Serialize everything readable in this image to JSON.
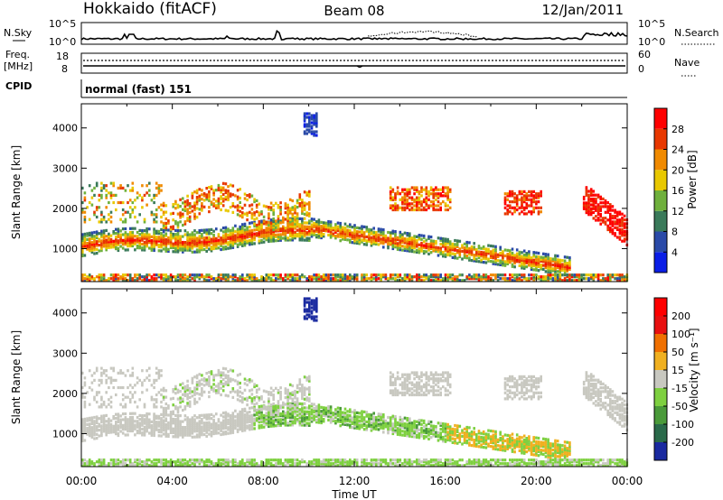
{
  "header": {
    "station": "Hokkaido (fitACF)",
    "beam": "Beam 08",
    "date": "12/Jan/2011"
  },
  "nsky_panel": {
    "label": "N.Sky",
    "right_label": "N.Search",
    "ticks": [
      "10^5",
      "10^0"
    ]
  },
  "freq_panel": {
    "label_top": "Freq.",
    "label_bottom": "[MHz]",
    "left_ticks": [
      "18",
      "8"
    ],
    "right_ticks": [
      "60",
      "0"
    ],
    "right_label": "Nave"
  },
  "cpid_panel": {
    "label": "CPID",
    "mode": "normal (fast) 151"
  },
  "chart_data": [
    {
      "type": "heatmap",
      "name": "power",
      "xlabel": "Time UT",
      "ylabel": "Slant Range [km]",
      "x_ticks": [
        "00:00",
        "04:00",
        "08:00",
        "12:00",
        "16:00",
        "20:00",
        "00:00"
      ],
      "y_ticks": [
        1000,
        2000,
        3000,
        4000
      ],
      "ylim": [
        180,
        4600
      ],
      "xlim_hours": [
        0,
        24
      ],
      "colorbar": {
        "label": "Power [dB]",
        "ticks": [
          "4",
          "8",
          "12",
          "16",
          "20",
          "24",
          "28"
        ],
        "colors": [
          "#0a1ee6",
          "#2a4aa8",
          "#3a7a5a",
          "#6fb03c",
          "#e8c800",
          "#f08a00",
          "#e83800",
          "#ff0000"
        ]
      },
      "features": [
        {
          "x": [
            0,
            10
          ],
          "y": [
            800,
            1500
          ],
          "level": 7
        },
        {
          "x": [
            4,
            8
          ],
          "y": [
            1300,
            2600
          ],
          "level": 5
        },
        {
          "x": [
            10,
            22
          ],
          "y": [
            400,
            1600
          ],
          "level": 6
        },
        {
          "x": [
            9.7,
            10.3
          ],
          "y": [
            3800,
            4400
          ],
          "level": 1
        },
        {
          "x": [
            13.5,
            16
          ],
          "y": [
            1900,
            2600
          ],
          "level": 4
        },
        {
          "x": [
            22.5,
            24
          ],
          "y": [
            900,
            2600
          ],
          "level": 6
        }
      ]
    },
    {
      "type": "heatmap",
      "name": "velocity",
      "xlabel": "Time UT",
      "ylabel": "Slant Range [km]",
      "x_ticks": [
        "00:00",
        "04:00",
        "08:00",
        "12:00",
        "16:00",
        "20:00",
        "00:00"
      ],
      "y_ticks": [
        1000,
        2000,
        3000,
        4000
      ],
      "ylim": [
        180,
        4600
      ],
      "xlim_hours": [
        0,
        24
      ],
      "colorbar": {
        "label": "Velocity [m s⁻¹]",
        "ticks": [
          "200",
          "100",
          "50",
          "15",
          "-15",
          "-50",
          "-100",
          "-200"
        ],
        "colors": [
          "#1a2aa0",
          "#2a6a4a",
          "#4a9a3a",
          "#7ed040",
          "#c8c8c0",
          "#f0b020",
          "#f07000",
          "#e81010",
          "#ff0000"
        ]
      },
      "features": [
        {
          "x": [
            0,
            10
          ],
          "y": [
            800,
            2000
          ],
          "level": "ground"
        },
        {
          "x": [
            8,
            16
          ],
          "y": [
            1000,
            2000
          ],
          "level": "toward"
        },
        {
          "x": [
            16,
            20
          ],
          "y": [
            500,
            1200
          ],
          "level": "away"
        },
        {
          "x": [
            9.7,
            10.3
          ],
          "y": [
            3800,
            4400
          ],
          "level": "toward-fast"
        }
      ]
    }
  ]
}
